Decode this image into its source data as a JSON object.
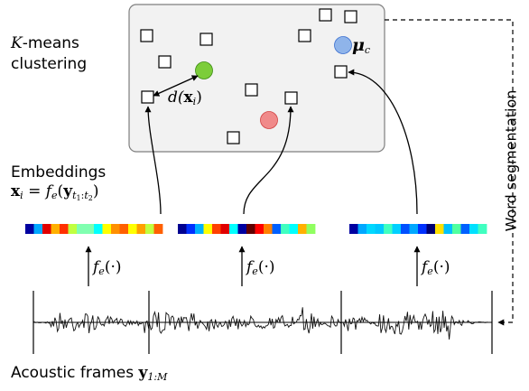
{
  "labels": {
    "kmeans_line1": "K-means",
    "kmeans_line2": "clustering",
    "embeddings": "Embeddings",
    "word_segmentation": "Word segmentation",
    "acoustic_prefix": "Acoustic frames "
  },
  "math": {
    "K": "K",
    "mu": "μ",
    "mu_sub": "c",
    "d_prefix": "d(",
    "d_var": "x",
    "d_sub": "i",
    "d_suffix": ")",
    "emb_lhs_var": "x",
    "emb_lhs_sub": "i",
    "emb_eq": " = ",
    "emb_f": "f",
    "emb_f_sub": "e",
    "emb_open": "(",
    "emb_y": "y",
    "emb_y_t1": "t",
    "emb_y_t1_sub": "1",
    "emb_y_colon": ":",
    "emb_y_t2": "t",
    "emb_y_t2_sub": "2",
    "emb_close": ")",
    "fe_f": "f",
    "fe_sub": "e",
    "fe_arg": "(·)",
    "acoustic_var": "y",
    "acoustic_sub": "1:M"
  },
  "colors": {
    "box_fill": "#f2f2f2",
    "box_stroke": "#7f7f7f",
    "centroid_green": "#7ccd3a",
    "centroid_blue": "#8fb4ea",
    "centroid_red": "#f08a8a",
    "wave": "#111111"
  },
  "embedding_vectors": [
    [
      "#0000a0",
      "#00a8ff",
      "#e00000",
      "#ffb000",
      "#ff3000",
      "#c0ff40",
      "#80ffb0",
      "#80ffb0",
      "#00ffff",
      "#ffff00",
      "#ff9000",
      "#ff6000",
      "#ffff00",
      "#ffa000",
      "#c0ff40",
      "#ff6000"
    ],
    [
      "#000090",
      "#0030ff",
      "#00b0ff",
      "#ffff00",
      "#ff4000",
      "#e00000",
      "#00ffff",
      "#0000a0",
      "#600000",
      "#ff0000",
      "#ff8000",
      "#0060ff",
      "#40ffc0",
      "#00ffff",
      "#ffb000",
      "#90ff60"
    ],
    [
      "#0000a0",
      "#00a8ff",
      "#00d8ff",
      "#00c8ff",
      "#40ffc0",
      "#00d0ff",
      "#0050ff",
      "#00a8ff",
      "#0030ff",
      "#000070",
      "#ffe000",
      "#00c0ff",
      "#50ffa0",
      "#0060ff",
      "#00e0ff",
      "#40ffc0"
    ]
  ],
  "icons": [
    "square-marker",
    "centroid-dot",
    "double-arrow",
    "curved-arrow",
    "up-arrow",
    "dashed-feedback-arrow",
    "waveform"
  ]
}
